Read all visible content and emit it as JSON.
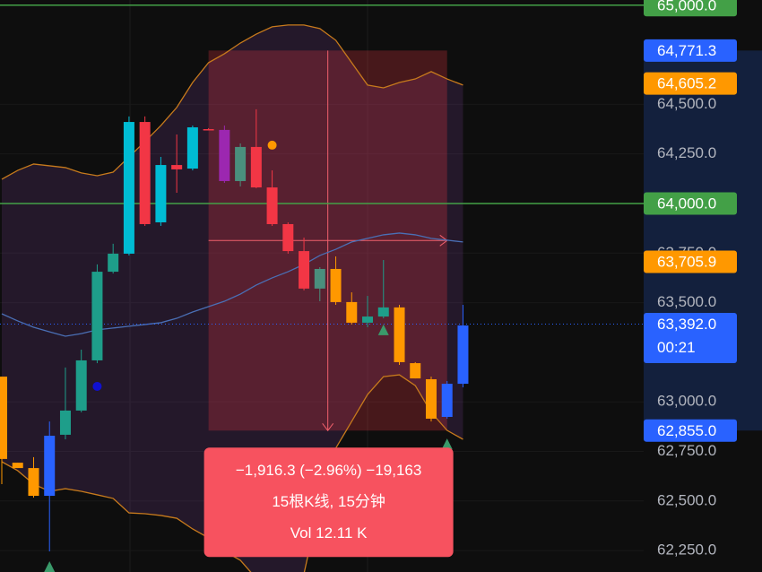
{
  "chart_data": {
    "type": "candlestick",
    "ylim": [
      62142,
      65026
    ],
    "yticks": [
      {
        "value": 64500,
        "label": "64,500.0"
      },
      {
        "value": 64250,
        "label": "64,250.0"
      },
      {
        "value": 63750,
        "label": "63,750.0"
      },
      {
        "value": 63500,
        "label": "63,500.0"
      },
      {
        "value": 63000,
        "label": "63,000.0"
      },
      {
        "value": 62750,
        "label": "62,750.0"
      },
      {
        "value": 62500,
        "label": "62,500.0"
      },
      {
        "value": 62250,
        "label": "62,250.0"
      }
    ],
    "grid": true,
    "candles": {
      "open": [
        63127,
        62693,
        62666,
        62526,
        62834,
        62956,
        63209,
        63656,
        63747,
        64411,
        63905,
        64194,
        64176,
        64375,
        64371,
        64113,
        64285,
        64081,
        63896,
        63760,
        63571,
        63670,
        63503,
        63399,
        63430,
        63476,
        63195,
        63114,
        62924,
        63091
      ],
      "high": [
        63127,
        62693,
        62721,
        62901,
        63173,
        63263,
        63693,
        63797,
        64439,
        64439,
        64235,
        64348,
        64393,
        64380,
        64393,
        64303,
        64475,
        64167,
        63905,
        63828,
        63679,
        63733,
        63552,
        63534,
        63715,
        63489,
        63200,
        63127,
        63105,
        63489
      ],
      "low": [
        62585,
        62666,
        62517,
        62246,
        62811,
        62947,
        63195,
        63647,
        63738,
        63887,
        63887,
        64054,
        64167,
        64370,
        64104,
        64086,
        64077,
        63887,
        63747,
        63562,
        63507,
        63489,
        63390,
        63376,
        63421,
        63186,
        63118,
        62901,
        62915,
        63073
      ],
      "close": [
        62712,
        62666,
        62526,
        62829,
        62956,
        63209,
        63656,
        63747,
        64411,
        63896,
        64194,
        64172,
        64384,
        64375,
        64113,
        64285,
        64081,
        63896,
        63760,
        63571,
        63670,
        63503,
        63399,
        63430,
        63476,
        63200,
        63118,
        62915,
        63091,
        63385
      ],
      "colors": [
        "#ff9800",
        "#ff9800",
        "#ff9800",
        "#2962ff",
        "#1e9e8a",
        "#1e9e8a",
        "#1e9e8a",
        "#1e9e8a",
        "#00bcd4",
        "#f23645",
        "#00bcd4",
        "#f23645",
        "#00bcd4",
        "#f23645",
        "#9c27b0",
        "#4a8f7d",
        "#f23645",
        "#f23645",
        "#f23645",
        "#f23645",
        "#4a8f7d",
        "#ff9800",
        "#ff9800",
        "#1e9e8a",
        "#1e9e8a",
        "#ff9800",
        "#ff9800",
        "#ff9800",
        "#2962ff",
        "#2962ff"
      ]
    },
    "bands": {
      "fill": "rgba(140,70,170,0.18)",
      "upper": {
        "color": "#c77a1c",
        "values": [
          64122,
          64167,
          64199,
          64190,
          64181,
          64154,
          64140,
          64158,
          64235,
          64312,
          64393,
          64484,
          64610,
          64710,
          64755,
          64809,
          64854,
          64891,
          64900,
          64900,
          64882,
          64823,
          64710,
          64597,
          64583,
          64610,
          64628,
          64665,
          64628,
          64597
        ]
      },
      "basis": {
        "color": "#4a6fb5",
        "values": [
          63444,
          63408,
          63376,
          63353,
          63331,
          63344,
          63363,
          63372,
          63381,
          63390,
          63399,
          63421,
          63453,
          63480,
          63507,
          63543,
          63589,
          63625,
          63656,
          63693,
          63738,
          63769,
          63806,
          63824,
          63842,
          63851,
          63842,
          63824,
          63815,
          63806
        ]
      },
      "lower": {
        "color": "#c77a1c",
        "values": [
          62698,
          62653,
          62585,
          62549,
          62562,
          62549,
          62531,
          62513,
          62440,
          62436,
          62427,
          62413,
          62359,
          62314,
          62246,
          62201,
          62110,
          62042,
          62042,
          62133,
          62495,
          62766,
          62901,
          63037,
          63127,
          63136,
          63082,
          62947,
          62856,
          62811
        ]
      }
    },
    "signals": [
      {
        "x": 6,
        "value": 63078,
        "shape": "dot",
        "color": "#1010d0"
      },
      {
        "x": 17,
        "value": 64294,
        "shape": "dot",
        "color": "#ff9800"
      },
      {
        "x": 24,
        "value": 63363,
        "shape": "triangle",
        "color": "#3a9a6a"
      },
      {
        "x": 28,
        "value": 62788,
        "shape": "triangle",
        "color": "#3a9a6a"
      },
      {
        "x": 3,
        "value": 62169,
        "shape": "triangle",
        "color": "#3a9a6a"
      }
    ],
    "measure": {
      "from": 64771.3,
      "to": 62855.0,
      "x": [
        13,
        28
      ],
      "color": "rgba(242,54,69,0.25)",
      "lines": [
        "−1,916.3 (−2.96%) −19,163",
        "15根K线, 15分钟",
        "Vol 12.11 K"
      ]
    },
    "price_labels": [
      {
        "value": 65000,
        "label": "65,000.0",
        "color": "#43a047",
        "line": "solid"
      },
      {
        "value": 64771.3,
        "label": "64,771.3",
        "color": "#2962ff"
      },
      {
        "value": 64605.2,
        "label": "64,605.2",
        "color": "#ff9800"
      },
      {
        "value": 64000,
        "label": "64,000.0",
        "color": "#43a047",
        "line": "solid"
      },
      {
        "value": 63705.9,
        "label": "63,705.9",
        "color": "#ff9800"
      },
      {
        "value": 63392,
        "label": "63,392.0",
        "sublabel": "00:21",
        "color": "#2962ff",
        "line": "dotted"
      },
      {
        "value": 62855,
        "label": "62,855.0",
        "color": "#2962ff"
      }
    ]
  }
}
